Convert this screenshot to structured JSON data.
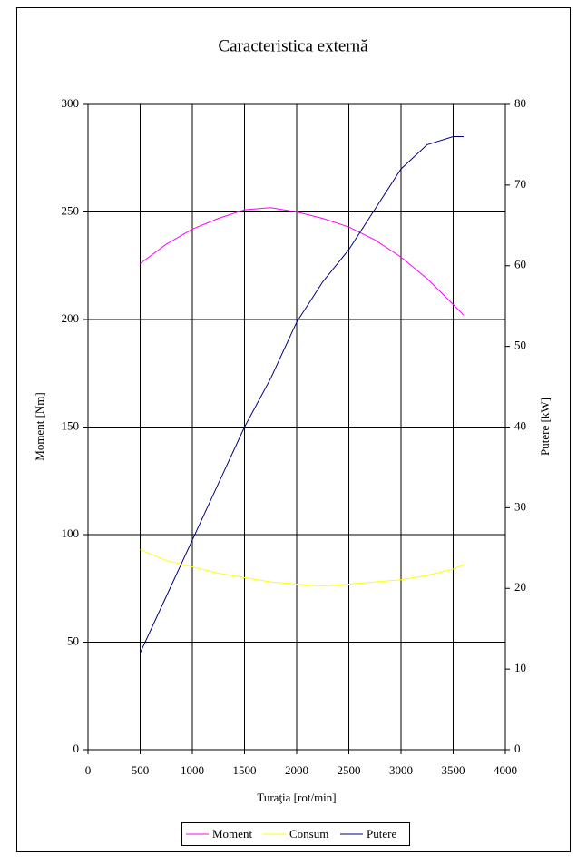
{
  "chart_data": {
    "type": "line",
    "title": "Caracteristica externă",
    "x_label": "Turaţia [rot/min]",
    "y_label": "Moment  [Nm]",
    "y2_label": "Putere [kW]",
    "x": [
      500,
      750,
      1000,
      1250,
      1500,
      1750,
      2000,
      2250,
      2500,
      2750,
      3000,
      3250,
      3500,
      3600
    ],
    "series": [
      {
        "name": "Moment",
        "color": "#ff00ff",
        "values": [
          226,
          235,
          242,
          247,
          251,
          252,
          250,
          247,
          243,
          237,
          229,
          219,
          207,
          202
        ]
      },
      {
        "name": "Consum",
        "color": "#ffff00",
        "values": [
          93,
          88,
          85,
          82,
          80,
          78,
          77,
          76,
          77,
          78,
          79,
          81,
          84,
          86
        ]
      },
      {
        "name": "Putere",
        "color": "#000080",
        "axis": "y2",
        "values": [
          12,
          19,
          26,
          33,
          40,
          46,
          53,
          58,
          62,
          67,
          72,
          75,
          76,
          76
        ]
      }
    ],
    "xlim": [
      0,
      4000
    ],
    "xticks": [
      0,
      500,
      1000,
      1500,
      2000,
      2500,
      3000,
      3500,
      4000
    ],
    "ylim": [
      0,
      300
    ],
    "yticks": [
      0,
      50,
      100,
      150,
      200,
      250,
      300
    ],
    "y2lim": [
      0,
      80
    ],
    "y2ticks": [
      0,
      10,
      20,
      30,
      40,
      50,
      60,
      70,
      80
    ],
    "grid": true,
    "legend": "bottom"
  }
}
